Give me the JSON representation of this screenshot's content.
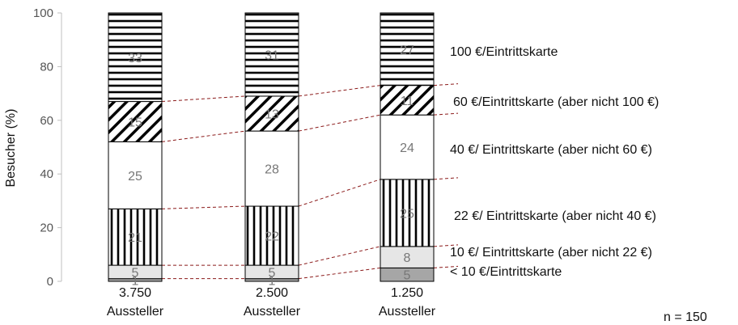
{
  "chart_data": {
    "type": "bar",
    "stacked": true,
    "ylabel": "Besucher (%)",
    "ylim": [
      0,
      100
    ],
    "yticks": [
      0,
      20,
      40,
      60,
      80,
      100
    ],
    "categories": [
      {
        "line1": "3.750",
        "line2": "Aussteller"
      },
      {
        "line1": "2.500",
        "line2": "Aussteller"
      },
      {
        "line1": "1.250",
        "line2": "Aussteller"
      }
    ],
    "series": [
      {
        "name": "< 10 €/Eintrittskarte",
        "values": [
          1,
          1,
          5
        ],
        "pattern": "solid-gray",
        "color": "#a6a6a6"
      },
      {
        "name": "10 €/ Eintrittskarte (aber nicht 22 €)",
        "values": [
          5,
          5,
          8
        ],
        "pattern": "solid-lightgray",
        "color": "#e6e6e6"
      },
      {
        "name": "22 €/ Eintrittskarte (aber nicht 40 €)",
        "values": [
          21,
          22,
          25
        ],
        "pattern": "vertical-lines",
        "color": "#000000"
      },
      {
        "name": "40 €/ Eintrittskarte (aber nicht 60 €)",
        "values": [
          25,
          28,
          24
        ],
        "pattern": "white",
        "color": "#ffffff"
      },
      {
        "name": "60 €/Eintrittskarte (aber nicht 100 €)",
        "values": [
          15,
          13,
          11
        ],
        "pattern": "diagonal-lines",
        "color": "#000000"
      },
      {
        "name": "100 €/Eintrittskarte",
        "values": [
          33,
          31,
          27
        ],
        "pattern": "horizontal-lines",
        "color": "#000000"
      }
    ],
    "connector_color": "#8b1a1a",
    "grid": false,
    "legend_position": "right",
    "note": "n = 150"
  }
}
